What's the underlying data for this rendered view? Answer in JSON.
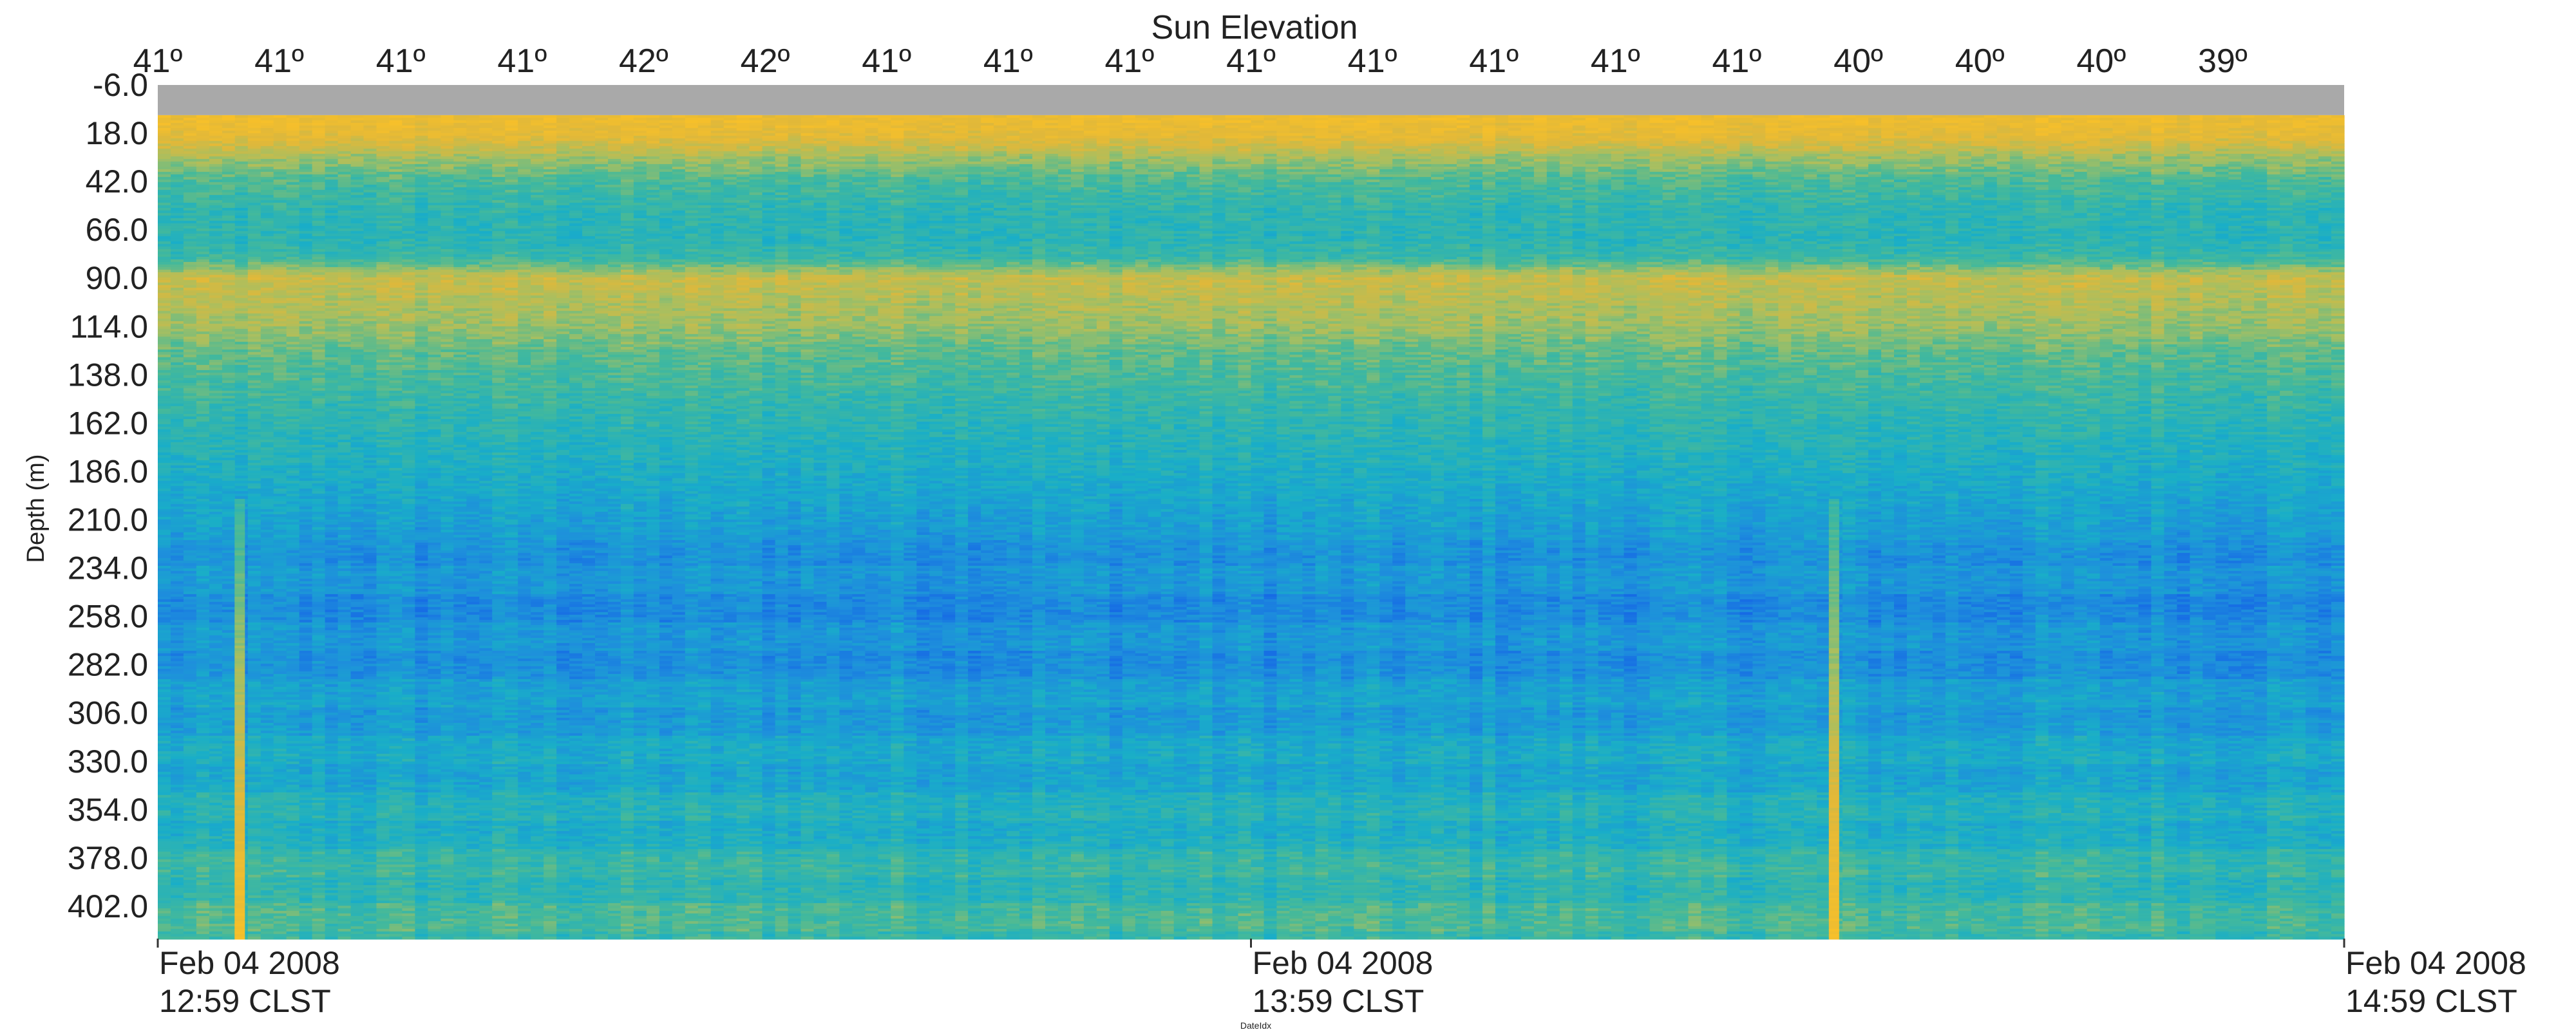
{
  "chart_data": {
    "type": "heatmap",
    "title": "Sun Elevation",
    "ylabel": "Depth (m)",
    "xlabel": "DateIdx",
    "y_ticks": [
      "-6.0",
      "18.0",
      "42.0",
      "66.0",
      "90.0",
      "114.0",
      "138.0",
      "162.0",
      "186.0",
      "210.0",
      "234.0",
      "258.0",
      "282.0",
      "306.0",
      "330.0",
      "354.0",
      "378.0",
      "402.0"
    ],
    "y_range": [
      -6.0,
      418.0
    ],
    "sun_elevation_labels": [
      "41º",
      "41º",
      "41º",
      "41º",
      "42º",
      "42º",
      "41º",
      "41º",
      "41º",
      "41º",
      "41º",
      "41º",
      "41º",
      "41º",
      "40º",
      "40º",
      "40º",
      "39º"
    ],
    "x_ticks": [
      {
        "date": "Feb 04 2008",
        "time": "12:59 CLST"
      },
      {
        "date": "Feb 04 2008",
        "time": "13:59 CLST"
      },
      {
        "date": "Feb 04 2008",
        "time": "14:59 CLST"
      }
    ],
    "x_range_minutes_after_12_59": [
      0,
      120
    ],
    "no_data_band_depth": [
      -6.0,
      9.0
    ],
    "vertical_streaks_minutes_after_12_59": [
      4.5,
      92.0
    ],
    "depth_profile": [
      {
        "depth": 12,
        "level": 0.92
      },
      {
        "depth": 20,
        "level": 0.86
      },
      {
        "depth": 30,
        "level": 0.66
      },
      {
        "depth": 42,
        "level": 0.5
      },
      {
        "depth": 56,
        "level": 0.42
      },
      {
        "depth": 70,
        "level": 0.4
      },
      {
        "depth": 80,
        "level": 0.46
      },
      {
        "depth": 90,
        "level": 0.76
      },
      {
        "depth": 102,
        "level": 0.7
      },
      {
        "depth": 114,
        "level": 0.65
      },
      {
        "depth": 126,
        "level": 0.55
      },
      {
        "depth": 150,
        "level": 0.45
      },
      {
        "depth": 180,
        "level": 0.36
      },
      {
        "depth": 210,
        "level": 0.26
      },
      {
        "depth": 240,
        "level": 0.18
      },
      {
        "depth": 270,
        "level": 0.18
      },
      {
        "depth": 300,
        "level": 0.24
      },
      {
        "depth": 330,
        "level": 0.3
      },
      {
        "depth": 360,
        "level": 0.36
      },
      {
        "depth": 390,
        "level": 0.44
      },
      {
        "depth": 418,
        "level": 0.48
      }
    ],
    "colors": {
      "no_data": "#a9a9a9",
      "colormap": [
        "#1565e6",
        "#1e8fdc",
        "#19aec8",
        "#45b99a",
        "#a7bf61",
        "#e0b83a",
        "#f7c02a"
      ]
    }
  }
}
